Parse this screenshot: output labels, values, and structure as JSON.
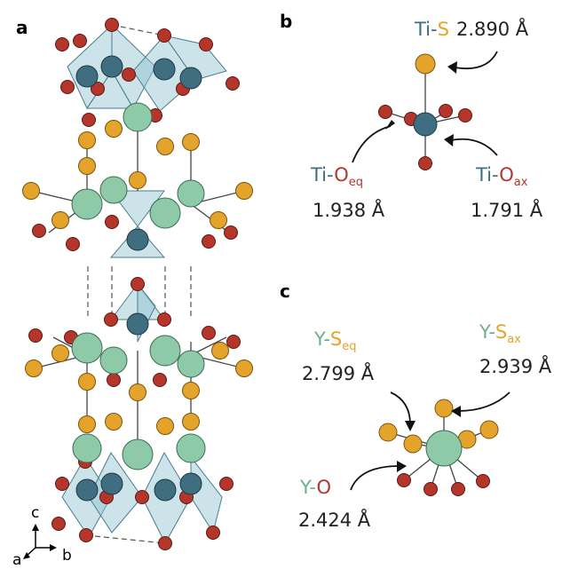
{
  "panels": {
    "a": {
      "label": "a"
    },
    "b": {
      "label": "b"
    },
    "c": {
      "label": "c"
    }
  },
  "axes": {
    "c": "c",
    "a": "a",
    "b": "b"
  },
  "bonds_b": {
    "ti_s": {
      "metal": "Ti",
      "dash": "-",
      "ligand": "S",
      "sub": "",
      "value": "2.890 Å"
    },
    "ti_oeq": {
      "metal": "Ti",
      "dash": "-",
      "ligand": "O",
      "sub": "eq",
      "value": "1.938 Å"
    },
    "ti_oax": {
      "metal": "Ti",
      "dash": "-",
      "ligand": "O",
      "sub": "ax",
      "value": "1.791 Å"
    }
  },
  "bonds_c": {
    "y_seq": {
      "metal": "Y",
      "dash": "-",
      "ligand": "S",
      "sub": "eq",
      "value": "2.799 Å"
    },
    "y_sax": {
      "metal": "Y",
      "dash": "-",
      "ligand": "S",
      "sub": "ax",
      "value": "2.939 Å"
    },
    "y_o": {
      "metal": "Y",
      "dash": "-",
      "ligand": "O",
      "sub": "",
      "value": "2.424 Å"
    }
  },
  "colors": {
    "ti": "#3f6e80",
    "y": "#8ec9a8",
    "s": "#e4a32a",
    "o": "#b5352b",
    "polyhedron": "#8ec0d0",
    "ti_text": "#3f6e80",
    "y_text": "#6fae8a",
    "s_text": "#e4a32a",
    "o_text": "#b5352b"
  }
}
